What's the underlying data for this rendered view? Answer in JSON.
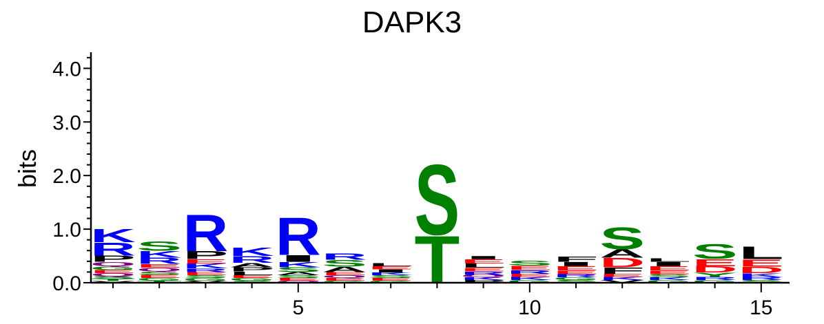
{
  "chart_data": {
    "type": "sequence_logo",
    "title": "DAPK3",
    "ylabel": "bits",
    "xlabel": "",
    "ylim": [
      0,
      4.3
    ],
    "y_ticks": [
      "0.0",
      "1.0",
      "2.0",
      "3.0",
      "4.0"
    ],
    "y_tick_values": [
      0,
      1,
      2,
      3,
      4
    ],
    "x_ticks": [
      "5",
      "10",
      "15"
    ],
    "x_tick_values": [
      5,
      10,
      15
    ],
    "positions": [
      1,
      2,
      3,
      4,
      5,
      6,
      7,
      8,
      9,
      10,
      11,
      12,
      13,
      14,
      15
    ],
    "colors": {
      "basic": "#0000ff",
      "acidic": "#ff0000",
      "polar": "#008000",
      "hydrophobic": "#000000",
      "amide": "#800080"
    },
    "columns": [
      {
        "position": 1,
        "total_bits": 1.1,
        "letters": [
          {
            "aa": "V",
            "bits": 0.03
          },
          {
            "aa": "T",
            "bits": 0.04
          },
          {
            "aa": "S",
            "bits": 0.05
          },
          {
            "aa": "Q",
            "bits": 0.06
          },
          {
            "aa": "E",
            "bits": 0.06
          },
          {
            "aa": "G",
            "bits": 0.07
          },
          {
            "aa": "Q",
            "bits": 0.08
          },
          {
            "aa": "P",
            "bits": 0.12
          },
          {
            "aa": "R",
            "bits": 0.25
          },
          {
            "aa": "K",
            "bits": 0.26
          }
        ]
      },
      {
        "position": 2,
        "total_bits": 0.93,
        "letters": [
          {
            "aa": "T",
            "bits": 0.04
          },
          {
            "aa": "G",
            "bits": 0.05
          },
          {
            "aa": "E",
            "bits": 0.06
          },
          {
            "aa": "S",
            "bits": 0.06
          },
          {
            "aa": "Q",
            "bits": 0.07
          },
          {
            "aa": "E",
            "bits": 0.07
          },
          {
            "aa": "R",
            "bits": 0.12
          },
          {
            "aa": "K",
            "bits": 0.13
          },
          {
            "aa": "S",
            "bits": 0.18
          }
        ]
      },
      {
        "position": 3,
        "total_bits": 1.45,
        "letters": [
          {
            "aa": "V",
            "bits": 0.04
          },
          {
            "aa": "G",
            "bits": 0.05
          },
          {
            "aa": "S",
            "bits": 0.05
          },
          {
            "aa": "E",
            "bits": 0.06
          },
          {
            "aa": "R",
            "bits": 0.07
          },
          {
            "aa": "K",
            "bits": 0.09
          },
          {
            "aa": "E",
            "bits": 0.08
          },
          {
            "aa": "P",
            "bits": 0.15
          },
          {
            "aa": "R",
            "bits": 0.7
          }
        ]
      },
      {
        "position": 4,
        "total_bits": 0.92,
        "letters": [
          {
            "aa": "S",
            "bits": 0.04
          },
          {
            "aa": "G",
            "bits": 0.05
          },
          {
            "aa": "E",
            "bits": 0.05
          },
          {
            "aa": "L",
            "bits": 0.07
          },
          {
            "aa": "P",
            "bits": 0.08
          },
          {
            "aa": "A",
            "bits": 0.08
          },
          {
            "aa": "R",
            "bits": 0.13
          },
          {
            "aa": "K",
            "bits": 0.16
          }
        ]
      },
      {
        "position": 5,
        "total_bits": 1.45,
        "letters": [
          {
            "aa": "Q",
            "bits": 0.04
          },
          {
            "aa": "E",
            "bits": 0.05
          },
          {
            "aa": "S",
            "bits": 0.05
          },
          {
            "aa": "A",
            "bits": 0.06
          },
          {
            "aa": "S",
            "bits": 0.09
          },
          {
            "aa": "K",
            "bits": 0.1
          },
          {
            "aa": "I",
            "bits": 0.13
          },
          {
            "aa": "R",
            "bits": 0.72
          }
        ]
      },
      {
        "position": 6,
        "total_bits": 0.9,
        "letters": [
          {
            "aa": "G",
            "bits": 0.04
          },
          {
            "aa": "E",
            "bits": 0.05
          },
          {
            "aa": "Q",
            "bits": 0.05
          },
          {
            "aa": "E",
            "bits": 0.06
          },
          {
            "aa": "A",
            "bits": 0.1
          },
          {
            "aa": "S",
            "bits": 0.13
          },
          {
            "aa": "R",
            "bits": 0.12
          }
        ]
      },
      {
        "position": 7,
        "total_bits": 0.65,
        "letters": [
          {
            "aa": "G",
            "bits": 0.04
          },
          {
            "aa": "E",
            "bits": 0.05
          },
          {
            "aa": "S",
            "bits": 0.05
          },
          {
            "aa": "K",
            "bits": 0.05
          },
          {
            "aa": "I",
            "bits": 0.06
          },
          {
            "aa": "E",
            "bits": 0.06
          },
          {
            "aa": "L",
            "bits": 0.06
          }
        ]
      },
      {
        "position": 8,
        "total_bits": 2.25,
        "letters": [
          {
            "aa": "T",
            "bits": 0.9
          },
          {
            "aa": "S",
            "bits": 1.35
          }
        ]
      },
      {
        "position": 9,
        "total_bits": 0.72,
        "letters": [
          {
            "aa": "P",
            "bits": 0.05
          },
          {
            "aa": "K",
            "bits": 0.05
          },
          {
            "aa": "Q",
            "bits": 0.05
          },
          {
            "aa": "R",
            "bits": 0.06
          },
          {
            "aa": "E",
            "bits": 0.07
          },
          {
            "aa": "L",
            "bits": 0.08
          },
          {
            "aa": "E",
            "bits": 0.08
          },
          {
            "aa": "I",
            "bits": 0.06
          }
        ]
      },
      {
        "position": 10,
        "total_bits": 0.73,
        "letters": [
          {
            "aa": "G",
            "bits": 0.05
          },
          {
            "aa": "K",
            "bits": 0.06
          },
          {
            "aa": "E",
            "bits": 0.06
          },
          {
            "aa": "R",
            "bits": 0.07
          },
          {
            "aa": "E",
            "bits": 0.08
          },
          {
            "aa": "S",
            "bits": 0.09
          }
        ]
      },
      {
        "position": 11,
        "total_bits": 0.78,
        "letters": [
          {
            "aa": "S",
            "bits": 0.05
          },
          {
            "aa": "G",
            "bits": 0.05
          },
          {
            "aa": "R",
            "bits": 0.06
          },
          {
            "aa": "E",
            "bits": 0.07
          },
          {
            "aa": "E",
            "bits": 0.08
          },
          {
            "aa": "I",
            "bits": 0.08
          },
          {
            "aa": "F",
            "bits": 0.1
          }
        ]
      },
      {
        "position": 12,
        "total_bits": 1.25,
        "letters": [
          {
            "aa": "V",
            "bits": 0.05
          },
          {
            "aa": "K",
            "bits": 0.06
          },
          {
            "aa": "E",
            "bits": 0.06
          },
          {
            "aa": "F",
            "bits": 0.12
          },
          {
            "aa": "D",
            "bits": 0.18
          },
          {
            "aa": "A",
            "bits": 0.16
          },
          {
            "aa": "S",
            "bits": 0.42
          }
        ]
      },
      {
        "position": 13,
        "total_bits": 0.75,
        "letters": [
          {
            "aa": "G",
            "bits": 0.05
          },
          {
            "aa": "K",
            "bits": 0.05
          },
          {
            "aa": "S",
            "bits": 0.06
          },
          {
            "aa": "E",
            "bits": 0.07
          },
          {
            "aa": "E",
            "bits": 0.08
          },
          {
            "aa": "I",
            "bits": 0.08
          },
          {
            "aa": "L",
            "bits": 0.07
          }
        ]
      },
      {
        "position": 14,
        "total_bits": 1.05,
        "letters": [
          {
            "aa": "G",
            "bits": 0.05
          },
          {
            "aa": "R",
            "bits": 0.06
          },
          {
            "aa": "Y",
            "bits": 0.08
          },
          {
            "aa": "D",
            "bits": 0.12
          },
          {
            "aa": "E",
            "bits": 0.14
          },
          {
            "aa": "S",
            "bits": 0.28
          }
        ]
      },
      {
        "position": 15,
        "total_bits": 1.0,
        "letters": [
          {
            "aa": "S",
            "bits": 0.05
          },
          {
            "aa": "R",
            "bits": 0.06
          },
          {
            "aa": "K",
            "bits": 0.07
          },
          {
            "aa": "D",
            "bits": 0.12
          },
          {
            "aa": "E",
            "bits": 0.14
          },
          {
            "aa": "L",
            "bits": 0.24
          }
        ]
      }
    ]
  }
}
